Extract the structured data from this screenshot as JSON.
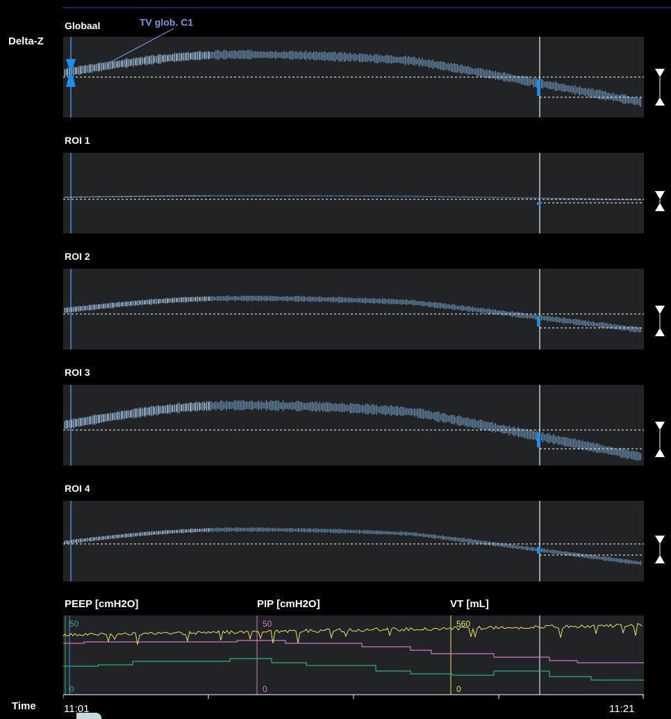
{
  "axis_label": "Delta-Z",
  "time_label": "Time",
  "time_start": "11:01",
  "time_end": "11:21",
  "tv_label": "TV glob. C1",
  "panels": [
    {
      "title": "Globaal"
    },
    {
      "title": "ROI 1"
    },
    {
      "title": "ROI 2"
    },
    {
      "title": "ROI 3"
    },
    {
      "title": "ROI 4"
    }
  ],
  "ventilation": {
    "peep_label": "PEEP [cmH2O]",
    "pip_label": "PIP [cmH2O]",
    "vt_label": "VT [mL]",
    "peep_max": "50",
    "peep_min": "0",
    "pip_max": "50",
    "pip_min": "0",
    "vt_max": "560",
    "vt_min": "0"
  },
  "colors": {
    "background": "#000000",
    "panel_bg": "#222326",
    "waveform": "#7fb0dc",
    "marker": "#1f8ee8",
    "peep": "#2db07f",
    "pip": "#d07ac2",
    "vt": "#e8e26a"
  }
}
